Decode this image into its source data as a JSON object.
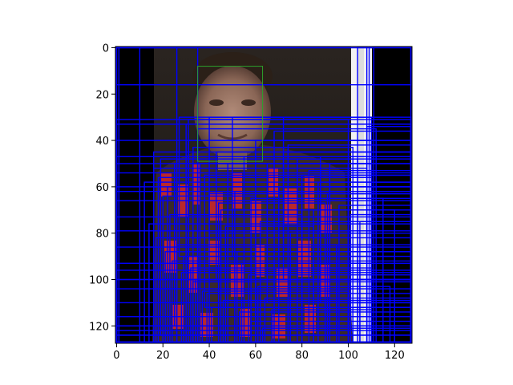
{
  "chart_data": {
    "type": "image",
    "title": "",
    "xlabel": "",
    "ylabel": "",
    "xlim": [
      -0.5,
      127.5
    ],
    "ylim": [
      127.5,
      -0.5
    ],
    "y_axis_inverted": true,
    "x_ticks": [
      0,
      20,
      40,
      60,
      80,
      100,
      120
    ],
    "y_ticks": [
      0,
      20,
      40,
      60,
      80,
      100,
      120
    ],
    "x_tick_labels": [
      "0",
      "20",
      "40",
      "60",
      "80",
      "100",
      "120"
    ],
    "y_tick_labels": [
      "0",
      "20",
      "40",
      "60",
      "80",
      "100",
      "120"
    ],
    "grid": false,
    "legend": "none",
    "image_content": "face-photo-with-bounding-boxes",
    "highlight_box": {
      "x0": 35,
      "y0": 8,
      "x1": 63,
      "y1": 49,
      "color": "#2ca02c"
    },
    "box_color": "#0000ff",
    "boxes": [
      [
        0,
        0,
        127,
        16
      ],
      [
        0,
        0,
        127,
        127
      ],
      [
        0,
        31,
        127,
        127
      ],
      [
        0,
        33,
        127,
        100
      ],
      [
        0,
        47,
        127,
        127
      ],
      [
        0,
        54,
        127,
        60
      ],
      [
        0,
        62,
        127,
        127
      ],
      [
        0,
        79,
        127,
        127
      ],
      [
        0,
        93,
        127,
        100
      ],
      [
        0,
        110,
        127,
        127
      ],
      [
        16,
        45,
        127,
        127
      ],
      [
        16,
        52,
        108,
        127
      ],
      [
        18,
        56,
        110,
        127
      ],
      [
        19,
        48,
        104,
        124
      ],
      [
        22,
        60,
        127,
        127
      ],
      [
        25,
        50,
        100,
        120
      ],
      [
        27,
        30,
        72,
        90
      ],
      [
        30,
        33,
        127,
        127
      ],
      [
        31,
        31,
        100,
        100
      ],
      [
        31,
        40,
        110,
        127
      ],
      [
        33,
        43,
        102,
        127
      ],
      [
        35,
        35,
        112,
        127
      ],
      [
        36,
        50,
        92,
        127
      ],
      [
        38,
        55,
        127,
        112
      ],
      [
        40,
        30,
        110,
        80
      ],
      [
        40,
        63,
        127,
        127
      ],
      [
        43,
        45,
        127,
        100
      ],
      [
        45,
        70,
        120,
        127
      ],
      [
        48,
        50,
        110,
        127
      ],
      [
        50,
        30,
        127,
        90
      ],
      [
        51,
        62,
        100,
        127
      ],
      [
        55,
        47,
        127,
        127
      ],
      [
        58,
        65,
        115,
        127
      ],
      [
        60,
        40,
        127,
        120
      ],
      [
        62,
        75,
        127,
        127
      ],
      [
        65,
        50,
        110,
        110
      ],
      [
        70,
        60,
        127,
        127
      ],
      [
        72,
        45,
        127,
        100
      ],
      [
        75,
        80,
        127,
        127
      ],
      [
        80,
        55,
        127,
        127
      ],
      [
        85,
        70,
        127,
        127
      ],
      [
        88,
        47,
        127,
        110
      ],
      [
        92,
        60,
        127,
        127
      ],
      [
        95,
        85,
        127,
        127
      ],
      [
        100,
        50,
        127,
        127
      ],
      [
        102,
        65,
        127,
        127
      ],
      [
        105,
        75,
        127,
        127
      ],
      [
        108,
        34,
        127,
        127
      ],
      [
        20,
        64,
        60,
        127
      ],
      [
        23,
        72,
        80,
        127
      ],
      [
        26,
        85,
        95,
        127
      ],
      [
        29,
        90,
        120,
        127
      ],
      [
        32,
        95,
        110,
        127
      ],
      [
        34,
        100,
        127,
        127
      ],
      [
        37,
        105,
        100,
        127
      ],
      [
        41,
        112,
        127,
        127
      ],
      [
        44,
        67,
        90,
        127
      ],
      [
        47,
        77,
        85,
        127
      ],
      [
        52,
        88,
        127,
        127
      ],
      [
        54,
        93,
        105,
        127
      ],
      [
        57,
        98,
        127,
        127
      ],
      [
        61,
        103,
        118,
        127
      ],
      [
        64,
        108,
        127,
        127
      ],
      [
        67,
        113,
        110,
        127
      ],
      [
        0,
        40,
        127,
        120
      ],
      [
        0,
        50,
        127,
        120
      ],
      [
        0,
        66,
        127,
        120
      ],
      [
        0,
        73,
        127,
        120
      ],
      [
        0,
        86,
        127,
        122
      ],
      [
        0,
        96,
        127,
        124
      ],
      [
        0,
        104,
        127,
        124
      ],
      [
        0,
        116,
        127,
        124
      ],
      [
        12,
        58,
        127,
        127
      ],
      [
        14,
        76,
        127,
        127
      ],
      [
        17,
        82,
        127,
        127
      ],
      [
        21,
        88,
        127,
        127
      ],
      [
        24,
        92,
        127,
        127
      ],
      [
        28,
        97,
        127,
        127
      ],
      [
        33,
        101,
        127,
        127
      ],
      [
        39,
        106,
        127,
        127
      ],
      [
        46,
        109,
        127,
        127
      ],
      [
        53,
        114,
        127,
        127
      ],
      [
        58,
        118,
        127,
        127
      ],
      [
        63,
        121,
        127,
        127
      ],
      [
        68,
        36,
        127,
        127
      ],
      [
        74,
        42,
        127,
        127
      ],
      [
        78,
        48,
        127,
        127
      ],
      [
        83,
        53,
        127,
        127
      ],
      [
        87,
        58,
        127,
        127
      ],
      [
        91,
        63,
        127,
        127
      ],
      [
        96,
        68,
        127,
        127
      ],
      [
        101,
        72,
        127,
        127
      ],
      [
        1,
        0,
        26,
        127
      ],
      [
        10,
        0,
        35,
        127
      ],
      [
        104,
        0,
        108,
        127
      ],
      [
        109,
        0,
        111,
        127
      ]
    ]
  }
}
